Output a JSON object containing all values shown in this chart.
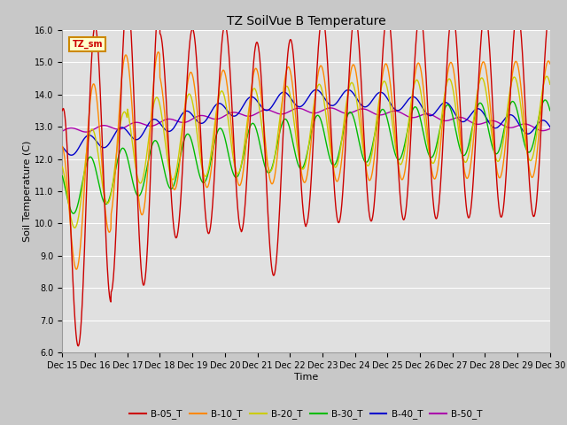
{
  "title": "TZ SoilVue B Temperature",
  "xlabel": "Time",
  "ylabel": "Soil Temperature (C)",
  "ylim": [
    6.0,
    16.0
  ],
  "yticks": [
    6.0,
    7.0,
    8.0,
    9.0,
    10.0,
    11.0,
    12.0,
    13.0,
    14.0,
    15.0,
    16.0
  ],
  "xlim": [
    0,
    15
  ],
  "xtick_labels": [
    "Dec 15",
    "Dec 16",
    "Dec 17",
    "Dec 18",
    "Dec 19",
    "Dec 20",
    "Dec 21",
    "Dec 22",
    "Dec 23",
    "Dec 24",
    "Dec 25",
    "Dec 26",
    "Dec 27",
    "Dec 28",
    "Dec 29",
    "Dec 30"
  ],
  "xtick_positions": [
    0,
    1,
    2,
    3,
    4,
    5,
    6,
    7,
    8,
    9,
    10,
    11,
    12,
    13,
    14,
    15
  ],
  "fig_bg_color": "#c8c8c8",
  "plot_bg_color": "#e0e0e0",
  "grid_color": "#ffffff",
  "series_colors": {
    "B-05_T": "#cc0000",
    "B-10_T": "#ff8800",
    "B-20_T": "#cccc00",
    "B-30_T": "#00bb00",
    "B-40_T": "#0000cc",
    "B-50_T": "#aa00aa"
  },
  "legend_label": "TZ_sm",
  "legend_box_color": "#ffffcc",
  "legend_box_border": "#cc8800",
  "title_fontsize": 10,
  "label_fontsize": 8,
  "tick_fontsize": 7
}
